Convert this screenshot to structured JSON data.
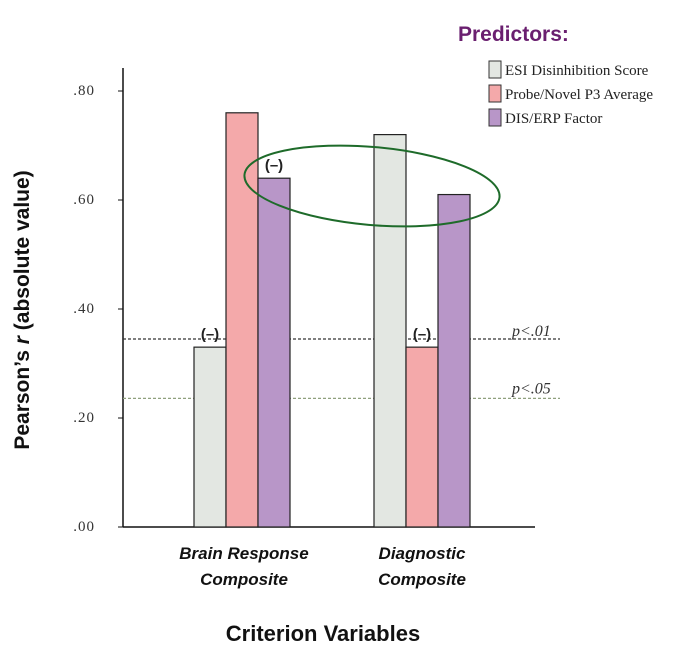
{
  "chart_data": {
    "type": "bar",
    "categories": [
      "Brain Response Composite",
      "Diagnostic Composite"
    ],
    "category_lines": [
      [
        "Brain Response",
        "Composite"
      ],
      [
        "Diagnostic",
        "Composite"
      ]
    ],
    "series": [
      {
        "name": "ESI Disinhibition Score",
        "values": [
          0.33,
          0.72
        ],
        "negative": [
          true,
          false
        ],
        "color": "#e3e7e2"
      },
      {
        "name": "Probe/Novel P3 Average",
        "values": [
          0.76,
          0.33
        ],
        "negative": [
          false,
          true
        ],
        "color": "#f4a9aa"
      },
      {
        "name": "DIS/ERP Factor",
        "values": [
          0.64,
          0.61
        ],
        "negative": [
          true,
          false
        ],
        "color": "#b896c8"
      }
    ],
    "negative_label": "(–)",
    "ylabel_parts": [
      "Pearson’s ",
      "r",
      " (absolute value)"
    ],
    "xlabel": "Criterion Variables",
    "ylim": [
      0,
      0.85
    ],
    "yticks": [
      0.0,
      0.2,
      0.4,
      0.6,
      0.8
    ],
    "ytick_labels": [
      ".00",
      ".20",
      ".40",
      ".60",
      ".80"
    ],
    "reference_lines": [
      {
        "label": "p<.01",
        "value": 0.345,
        "color": "#333333"
      },
      {
        "label": "p<.05",
        "value": 0.236,
        "color": "#8fa07e"
      }
    ],
    "legend_title": "Predictors:",
    "legend_position": "top-right",
    "highlight_ellipse_color": "#1e6b2a"
  }
}
